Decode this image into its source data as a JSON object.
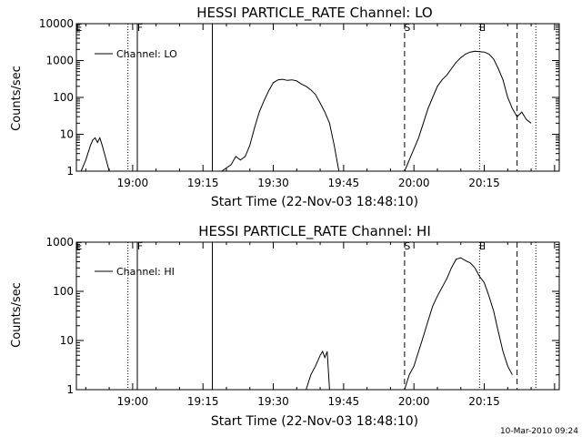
{
  "footer_timestamp": "10-Mar-2010 09:24",
  "chart_data": [
    {
      "type": "line",
      "title": "HESSI PARTICLE_RATE Channel: LO",
      "xlabel": "Start Time (22-Nov-03 18:48:10)",
      "ylabel": "Counts/sec",
      "yscale": "log",
      "ylim": [
        1,
        10000
      ],
      "xlim": [
        "18:48",
        "20:31"
      ],
      "xticks": [
        "19:00",
        "19:15",
        "19:30",
        "19:45",
        "20:00",
        "20:15"
      ],
      "yticks": [
        "1",
        "10",
        "100",
        "1000",
        "10000"
      ],
      "legend": {
        "placement": "top-left",
        "entries": [
          "Channel: LO"
        ]
      },
      "markers": [
        {
          "label": "E",
          "time": "18:48",
          "style": "dotted"
        },
        {
          "label": "",
          "time": "18:59",
          "style": "dotted"
        },
        {
          "label": "F",
          "time": "19:01",
          "style": "solid"
        },
        {
          "label": "",
          "time": "19:17",
          "style": "solid"
        },
        {
          "label": "S",
          "time": "19:58",
          "style": "dashed"
        },
        {
          "label": "E",
          "time": "20:14",
          "style": "dotted"
        },
        {
          "label": "",
          "time": "20:22",
          "style": "dashed"
        },
        {
          "label": "",
          "time": "20:26",
          "style": "dotted"
        }
      ],
      "series": [
        {
          "name": "Channel: LO",
          "segments": [
            {
              "x": [
                "18:49",
                "18:50",
                "18:51",
                "18:51:30",
                "18:52",
                "18:52:30",
                "18:53",
                "18:53:30",
                "18:54",
                "18:55"
              ],
              "y": [
                1,
                2,
                5,
                7,
                8,
                6,
                8,
                5,
                3,
                1
              ]
            },
            {
              "x": [
                "19:19",
                "19:21",
                "19:22",
                "19:23",
                "19:24",
                "19:25",
                "19:26",
                "19:27",
                "19:28",
                "19:29",
                "19:30",
                "19:31",
                "19:32",
                "19:33",
                "19:34",
                "19:35",
                "19:36",
                "19:37",
                "19:38",
                "19:39",
                "19:40",
                "19:41",
                "19:42",
                "19:43",
                "19:44"
              ],
              "y": [
                1,
                1.5,
                2.5,
                2,
                2.5,
                5,
                15,
                40,
                80,
                150,
                250,
                300,
                310,
                290,
                300,
                280,
                230,
                200,
                160,
                120,
                70,
                40,
                20,
                5,
                1
              ]
            },
            {
              "x": [
                "19:58",
                "19:59",
                "20:00",
                "20:01",
                "20:02",
                "20:03",
                "20:04",
                "20:05",
                "20:06",
                "20:07",
                "20:08",
                "20:09",
                "20:10",
                "20:11",
                "20:12",
                "20:13",
                "20:14",
                "20:15",
                "20:16",
                "20:17",
                "20:18",
                "20:19",
                "20:20",
                "20:21",
                "20:22",
                "20:23",
                "20:24",
                "20:25"
              ],
              "y": [
                1,
                2,
                4,
                8,
                20,
                50,
                100,
                200,
                300,
                400,
                600,
                900,
                1200,
                1500,
                1700,
                1800,
                1750,
                1700,
                1500,
                1100,
                600,
                300,
                100,
                50,
                30,
                40,
                25,
                20
              ]
            }
          ]
        }
      ]
    },
    {
      "type": "line",
      "title": "HESSI PARTICLE_RATE Channel: HI",
      "xlabel": "Start Time (22-Nov-03 18:48:10)",
      "ylabel": "Counts/sec",
      "yscale": "log",
      "ylim": [
        1,
        1000
      ],
      "xlim": [
        "18:48",
        "20:31"
      ],
      "xticks": [
        "19:00",
        "19:15",
        "19:30",
        "19:45",
        "20:00",
        "20:15"
      ],
      "yticks": [
        "1",
        "10",
        "100",
        "1000"
      ],
      "legend": {
        "placement": "top-left",
        "entries": [
          "Channel: HI"
        ]
      },
      "markers": [
        {
          "label": "E",
          "time": "18:48",
          "style": "dotted"
        },
        {
          "label": "",
          "time": "18:59",
          "style": "dotted"
        },
        {
          "label": "F",
          "time": "19:01",
          "style": "solid"
        },
        {
          "label": "",
          "time": "19:17",
          "style": "solid"
        },
        {
          "label": "S",
          "time": "19:58",
          "style": "dashed"
        },
        {
          "label": "E",
          "time": "20:14",
          "style": "dotted"
        },
        {
          "label": "",
          "time": "20:22",
          "style": "dashed"
        },
        {
          "label": "",
          "time": "20:26",
          "style": "dotted"
        }
      ],
      "series": [
        {
          "name": "Channel: HI",
          "segments": [
            {
              "x": [
                "19:37",
                "19:38",
                "19:39",
                "19:40",
                "19:40:30",
                "19:41",
                "19:41:30",
                "19:42"
              ],
              "y": [
                1,
                2,
                3,
                5,
                6,
                4.5,
                6,
                1
              ]
            },
            {
              "x": [
                "19:58",
                "19:59",
                "20:00",
                "20:01",
                "20:02",
                "20:03",
                "20:04",
                "20:05",
                "20:06",
                "20:07",
                "20:08",
                "20:09",
                "20:10",
                "20:11",
                "20:12",
                "20:13",
                "20:14",
                "20:15",
                "20:16",
                "20:17",
                "20:18",
                "20:19",
                "20:20",
                "20:21"
              ],
              "y": [
                1,
                2,
                3,
                6,
                12,
                25,
                50,
                80,
                120,
                180,
                300,
                450,
                480,
                420,
                380,
                300,
                200,
                150,
                80,
                40,
                15,
                6,
                3,
                2
              ]
            }
          ]
        }
      ]
    }
  ]
}
